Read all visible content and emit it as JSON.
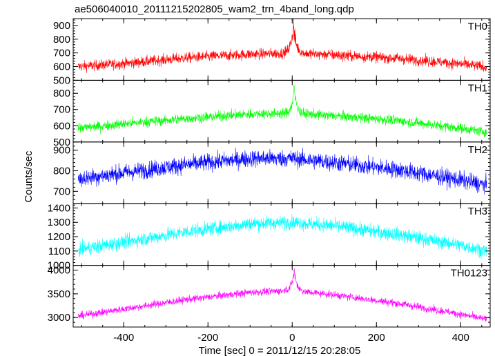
{
  "title": "ae506040010_20111215202805_wam2_trn_4band_long.qdp",
  "chart_data": {
    "type": "line",
    "title": "ae506040010_20111215202805_wam2_trn_4band_long.qdp",
    "xlabel": "Time [sec] 0 = 2011/12/15 20:28:05",
    "ylabel": "Counts/sec",
    "xlim": [
      -520,
      470
    ],
    "x_ticks": [
      -400,
      -200,
      0,
      200,
      400
    ],
    "panels": [
      {
        "name": "TH0",
        "color": "#ff0000",
        "ylim": [
          500,
          950
        ],
        "y_ticks": [
          500,
          600,
          700,
          800,
          900
        ],
        "x_range": [
          -508,
          462
        ],
        "trend": [
          [
            -508,
            600
          ],
          [
            -400,
            622
          ],
          [
            -250,
            665
          ],
          [
            -100,
            690
          ],
          [
            0,
            700
          ],
          [
            100,
            685
          ],
          [
            250,
            660
          ],
          [
            400,
            620
          ],
          [
            462,
            595
          ]
        ],
        "noise": 28,
        "spike": {
          "x": 3,
          "peak": 950,
          "width": 25
        }
      },
      {
        "name": "TH1",
        "color": "#00ff00",
        "ylim": [
          500,
          880
        ],
        "y_ticks": [
          500,
          600,
          700,
          800
        ],
        "x_range": [
          -508,
          462
        ],
        "trend": [
          [
            -508,
            585
          ],
          [
            -400,
            612
          ],
          [
            -250,
            645
          ],
          [
            -100,
            672
          ],
          [
            0,
            678
          ],
          [
            100,
            662
          ],
          [
            250,
            632
          ],
          [
            400,
            585
          ],
          [
            462,
            560
          ]
        ],
        "noise": 22,
        "spike": {
          "x": 5,
          "peak": 870,
          "width": 22
        }
      },
      {
        "name": "TH2",
        "color": "#0000ff",
        "ylim": [
          640,
          940
        ],
        "y_ticks": [
          700,
          800,
          900
        ],
        "x_range": [
          -508,
          462
        ],
        "trend": [
          [
            -508,
            760
          ],
          [
            -400,
            790
          ],
          [
            -250,
            830
          ],
          [
            -100,
            860
          ],
          [
            0,
            860
          ],
          [
            100,
            840
          ],
          [
            250,
            805
          ],
          [
            400,
            755
          ],
          [
            462,
            730
          ]
        ],
        "noise": 30,
        "spike": null
      },
      {
        "name": "TH3",
        "color": "#00ffff",
        "ylim": [
          1000,
          1430
        ],
        "y_ticks": [
          1000,
          1100,
          1200,
          1300,
          1400
        ],
        "x_range": [
          -508,
          462
        ],
        "trend": [
          [
            -508,
            1110
          ],
          [
            -400,
            1160
          ],
          [
            -250,
            1235
          ],
          [
            -100,
            1290
          ],
          [
            0,
            1300
          ],
          [
            100,
            1275
          ],
          [
            250,
            1215
          ],
          [
            400,
            1140
          ],
          [
            462,
            1100
          ]
        ],
        "noise": 35,
        "spike": null
      },
      {
        "name": "TH0123",
        "color": "#ff00ff",
        "ylim": [
          2800,
          4100
        ],
        "y_ticks": [
          3000,
          3500,
          4000
        ],
        "x_range": [
          -508,
          462
        ],
        "trend": [
          [
            -508,
            3030
          ],
          [
            -400,
            3180
          ],
          [
            -250,
            3380
          ],
          [
            -100,
            3530
          ],
          [
            0,
            3570
          ],
          [
            100,
            3480
          ],
          [
            250,
            3300
          ],
          [
            400,
            3070
          ],
          [
            462,
            2960
          ]
        ],
        "noise": 55,
        "spike": {
          "x": 5,
          "peak": 4080,
          "width": 25
        }
      }
    ],
    "grid": false,
    "legend": "panel labels top-right"
  }
}
